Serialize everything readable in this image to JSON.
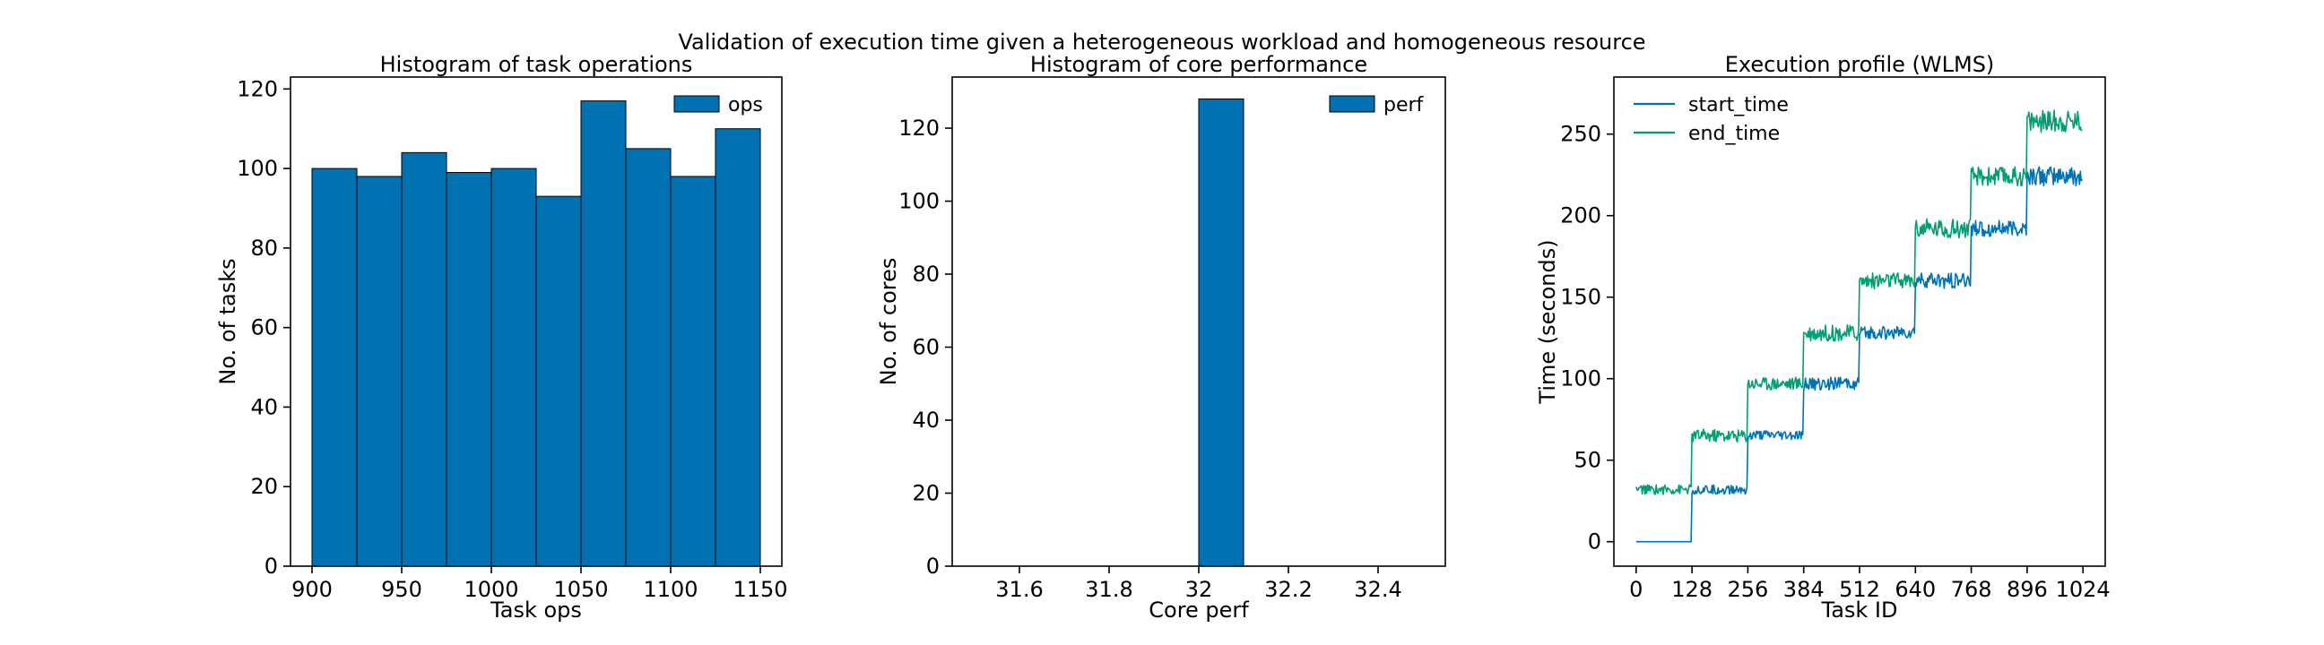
{
  "figure": {
    "suptitle": "Validation of execution time given a heterogeneous workload and homogeneous resource"
  },
  "chart_data": [
    {
      "type": "bar",
      "title": "Histogram of task operations",
      "xlabel": "Task ops",
      "ylabel": "No. of tasks",
      "xlim": [
        888,
        1162
      ],
      "ylim": [
        0,
        123
      ],
      "xticks": [
        900,
        950,
        1000,
        1050,
        1100,
        1150
      ],
      "yticks": [
        0,
        20,
        40,
        60,
        80,
        100,
        120
      ],
      "legend_position": "top-right",
      "color": "#0072b2",
      "series": [
        {
          "name": "ops",
          "bin_edges": [
            900,
            925,
            950,
            975,
            1000,
            1025,
            1050,
            1075,
            1100,
            1125,
            1150
          ],
          "values": [
            100,
            98,
            104,
            99,
            100,
            93,
            117,
            105,
            98,
            110
          ]
        }
      ]
    },
    {
      "type": "bar",
      "title": "Histogram of core performance",
      "xlabel": "Core perf",
      "ylabel": "No. of cores",
      "xlim": [
        31.45,
        32.55
      ],
      "ylim": [
        0,
        134
      ],
      "xticks": [
        31.6,
        31.8,
        32.0,
        32.2,
        32.4
      ],
      "yticks": [
        0,
        20,
        40,
        60,
        80,
        100,
        120
      ],
      "legend_position": "top-right",
      "color": "#0072b2",
      "series": [
        {
          "name": "perf",
          "bin_edges": [
            31.5,
            31.6,
            31.7,
            31.8,
            31.9,
            32.0,
            32.1,
            32.2,
            32.3,
            32.4,
            32.5
          ],
          "values": [
            0,
            0,
            0,
            0,
            0,
            128,
            0,
            0,
            0,
            0
          ]
        }
      ]
    },
    {
      "type": "line",
      "title": "Execution profile (WLMS)",
      "xlabel": "Task ID",
      "ylabel": "Time (seconds)",
      "xlim": [
        -51,
        1075
      ],
      "ylim": [
        -15,
        285
      ],
      "xticks": [
        0,
        128,
        256,
        384,
        512,
        640,
        768,
        896,
        1024
      ],
      "yticks": [
        0,
        50,
        100,
        150,
        200,
        250
      ],
      "legend_position": "top-left",
      "series": [
        {
          "name": "start_time",
          "color": "#0072b2",
          "x_blocks": [
            [
              0,
              127
            ],
            [
              128,
              255
            ],
            [
              256,
              383
            ],
            [
              384,
              511
            ],
            [
              512,
              639
            ],
            [
              640,
              767
            ],
            [
              768,
              895
            ],
            [
              896,
              1023
            ]
          ],
          "y_levels": [
            0,
            32,
            65,
            97,
            128,
            160,
            192,
            224
          ],
          "noise": [
            0,
            3,
            3,
            4,
            4,
            5,
            5,
            6
          ]
        },
        {
          "name": "end_time",
          "color": "#009e73",
          "x_blocks": [
            [
              0,
              127
            ],
            [
              128,
              255
            ],
            [
              256,
              383
            ],
            [
              384,
              511
            ],
            [
              512,
              639
            ],
            [
              640,
              767
            ],
            [
              768,
              895
            ],
            [
              896,
              1023
            ]
          ],
          "y_levels": [
            32,
            65,
            97,
            128,
            160,
            192,
            224,
            258
          ],
          "noise": [
            3,
            4,
            4,
            5,
            5,
            6,
            6,
            7
          ]
        }
      ]
    }
  ]
}
